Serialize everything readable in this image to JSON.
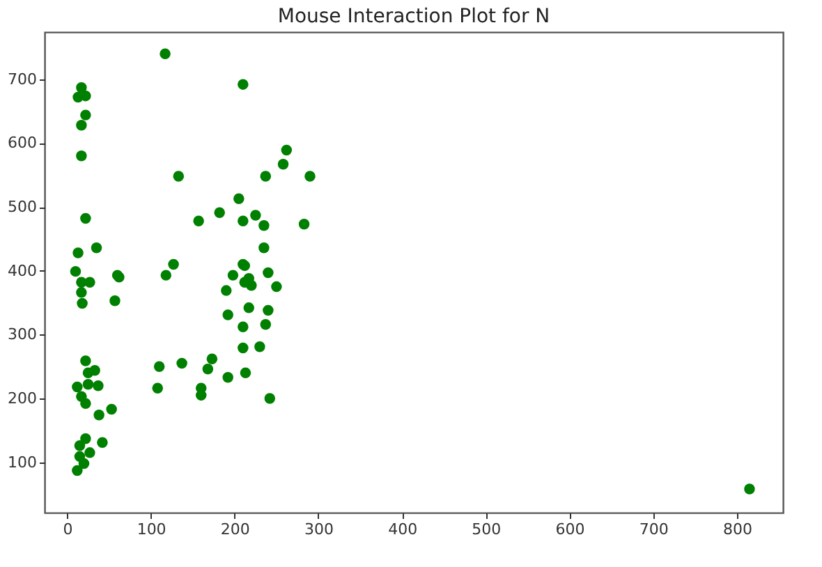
{
  "chart_data": {
    "type": "scatter",
    "title": "Mouse Interaction Plot for N",
    "marker": "circle",
    "grid": false,
    "xlim": [
      -27,
      855
    ],
    "ylim": [
      21,
      774
    ],
    "xticks": [
      0,
      100,
      200,
      300,
      400,
      500,
      600,
      700,
      800
    ],
    "yticks": [
      100,
      200,
      300,
      400,
      500,
      600,
      700
    ],
    "series": [
      {
        "color": "#008000",
        "x": [
          17,
          13,
          22,
          22,
          17,
          17,
          22,
          13,
          35,
          62,
          10,
          17,
          27,
          17,
          18,
          57,
          22,
          33,
          25,
          12,
          25,
          37,
          17,
          22,
          38,
          53,
          22,
          15,
          42,
          27,
          15,
          12,
          20,
          117,
          210,
          262,
          258,
          133,
          237,
          290,
          205,
          182,
          157,
          210,
          225,
          235,
          283,
          235,
          127,
          118,
          60,
          210,
          198,
          217,
          240,
          250,
          190,
          212,
          220,
          212,
          192,
          217,
          240,
          237,
          210,
          210,
          230,
          242,
          213,
          192,
          173,
          168,
          160,
          160,
          137,
          110,
          108,
          815
        ],
        "values": [
          687,
          672,
          674,
          644,
          628,
          580,
          482,
          428,
          436,
          390,
          399,
          382,
          382,
          366,
          349,
          353,
          259,
          244,
          240,
          218,
          222,
          220,
          203,
          192,
          174,
          183,
          137,
          126,
          131,
          115,
          109,
          87,
          98,
          740,
          692,
          589,
          567,
          548,
          548,
          548,
          513,
          491,
          478,
          478,
          487,
          471,
          473,
          436,
          410,
          393,
          393,
          410,
          393,
          388,
          397,
          375,
          369,
          382,
          377,
          408,
          331,
          342,
          338,
          316,
          312,
          279,
          281,
          200,
          240,
          233,
          262,
          246,
          216,
          205,
          255,
          250,
          216,
          58
        ]
      }
    ]
  }
}
